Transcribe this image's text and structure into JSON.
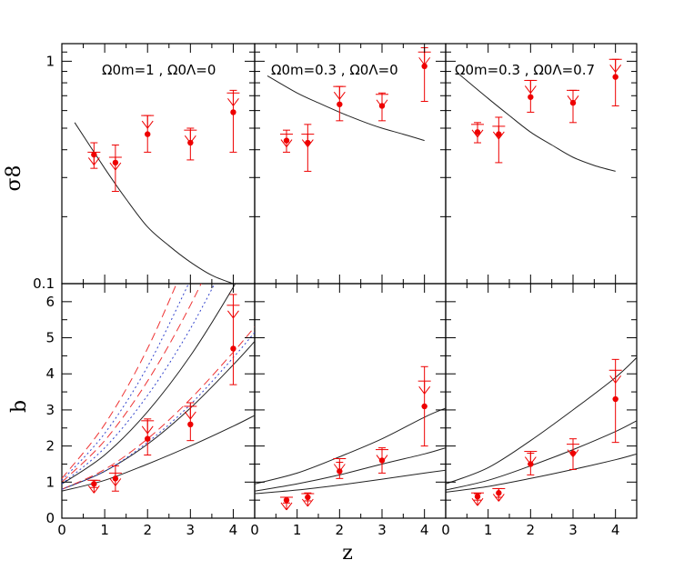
{
  "chart_data": {
    "type": "scatter",
    "xlabel": "z",
    "x_ticks": [
      "0",
      "1",
      "2",
      "3",
      "4"
    ],
    "colors": {
      "points": "#ee0000",
      "model_solid": "#222222",
      "model_dashed": "#ee3333",
      "model_dotted": "#3344cc"
    },
    "rows": [
      {
        "ylabel": "σ8",
        "yscale": "log",
        "ylim": [
          0.1,
          1.2
        ],
        "y_ticks": [
          {
            "value": 0.1,
            "label": "0.1"
          },
          {
            "value": 1,
            "label": "1"
          }
        ]
      },
      {
        "ylabel": "b",
        "yscale": "linear",
        "ylim": [
          0,
          6.5
        ],
        "y_ticks": [
          {
            "value": 0,
            "label": "0"
          },
          {
            "value": 1,
            "label": "1"
          },
          {
            "value": 2,
            "label": "2"
          },
          {
            "value": 3,
            "label": "3"
          },
          {
            "value": 4,
            "label": "4"
          },
          {
            "value": 5,
            "label": "5"
          },
          {
            "value": 6,
            "label": "6"
          }
        ]
      }
    ],
    "columns": [
      {
        "annotation": "Ω0m=1 , Ω0Λ=0",
        "sigma8": {
          "points": [
            {
              "x": 0.75,
              "y": 0.38,
              "lo": 0.33,
              "hi": 0.43
            },
            {
              "x": 1.25,
              "y": 0.35,
              "lo": 0.26,
              "hi": 0.42
            }
          ],
          "limits": [
            {
              "x": 0.75,
              "y": 0.39
            },
            {
              "x": 1.25,
              "y": 0.37
            },
            {
              "x": 2.0,
              "y": 0.57
            },
            {
              "x": 3.0,
              "y": 0.49
            },
            {
              "x": 4.0,
              "y": 0.72
            }
          ],
          "limit_points": [
            {
              "x": 2.0,
              "y": 0.47,
              "lo": 0.39,
              "hi": 0.57
            },
            {
              "x": 3.0,
              "y": 0.43,
              "lo": 0.36,
              "hi": 0.5
            },
            {
              "x": 4.0,
              "y": 0.59,
              "lo": 0.39,
              "hi": 0.74
            }
          ],
          "curves": [
            {
              "style": "solid",
              "x": [
                0.3,
                1,
                1.5,
                2,
                2.5,
                3,
                3.5,
                4
              ],
              "y": [
                0.53,
                0.33,
                0.24,
                0.18,
                0.148,
                0.125,
                0.109,
                0.1
              ]
            }
          ]
        },
        "bias": {
          "points": [
            {
              "x": 0.75,
              "y": 0.95,
              "lo": 0.85,
              "hi": 1.05
            },
            {
              "x": 1.25,
              "y": 1.1,
              "lo": 0.75,
              "hi": 1.45
            },
            {
              "x": 2.0,
              "y": 2.2,
              "lo": 1.75,
              "hi": 2.75
            },
            {
              "x": 3.0,
              "y": 2.6,
              "lo": 2.15,
              "hi": 3.2
            },
            {
              "x": 4.0,
              "y": 4.7,
              "lo": 3.7,
              "hi": 6.2
            }
          ],
          "limits": [
            {
              "x": 0.75,
              "y": 1.05
            },
            {
              "x": 1.25,
              "y": 1.25
            },
            {
              "x": 2.0,
              "y": 2.7
            },
            {
              "x": 3.0,
              "y": 3.1
            },
            {
              "x": 4.0,
              "y": 5.9
            }
          ],
          "curves": [
            {
              "style": "solid",
              "x": [
                0,
                1,
                2,
                3,
                4,
                4.5
              ],
              "y": [
                0.75,
                1.05,
                1.5,
                2.0,
                2.55,
                2.85
              ]
            },
            {
              "style": "solid",
              "x": [
                0,
                1,
                2,
                3,
                4,
                4.5
              ],
              "y": [
                0.8,
                1.3,
                2.05,
                3.05,
                4.25,
                4.9
              ]
            },
            {
              "style": "solid",
              "x": [
                0,
                1,
                2,
                3,
                4,
                4.5
              ],
              "y": [
                0.95,
                1.75,
                2.95,
                4.5,
                6.4,
                7.5
              ]
            },
            {
              "style": "dashed",
              "x": [
                0,
                1,
                2,
                3,
                4,
                4.5
              ],
              "y": [
                0.8,
                1.35,
                2.2,
                3.3,
                4.6,
                5.3
              ]
            },
            {
              "style": "dashed",
              "x": [
                0,
                1,
                2,
                3,
                4
              ],
              "y": [
                1.0,
                2.15,
                3.8,
                5.9,
                8.4
              ]
            },
            {
              "style": "dashed",
              "x": [
                0,
                1,
                2,
                3
              ],
              "y": [
                1.1,
                2.6,
                4.7,
                7.4
              ]
            },
            {
              "style": "dotted",
              "x": [
                0,
                1,
                2,
                3,
                4,
                4.5
              ],
              "y": [
                0.8,
                1.3,
                2.1,
                3.15,
                4.45,
                5.15
              ]
            },
            {
              "style": "dotted",
              "x": [
                0,
                1,
                2,
                3,
                4
              ],
              "y": [
                0.95,
                1.95,
                3.4,
                5.25,
                7.5
              ]
            },
            {
              "style": "dotted",
              "x": [
                0,
                1,
                2,
                3
              ],
              "y": [
                1.05,
                2.35,
                4.2,
                6.6
              ]
            }
          ]
        }
      },
      {
        "annotation": "Ω0m=0.3 , Ω0Λ=0",
        "sigma8": {
          "points": [
            {
              "x": 0.75,
              "y": 0.44,
              "lo": 0.39,
              "hi": 0.49
            },
            {
              "x": 1.25,
              "y": 0.43,
              "lo": 0.32,
              "hi": 0.52
            }
          ],
          "limits": [
            {
              "x": 0.75,
              "y": 0.47
            },
            {
              "x": 1.25,
              "y": 0.47
            },
            {
              "x": 2.0,
              "y": 0.77
            },
            {
              "x": 3.0,
              "y": 0.71
            },
            {
              "x": 4.0,
              "y": 1.1
            }
          ],
          "limit_points": [
            {
              "x": 2.0,
              "y": 0.64,
              "lo": 0.54,
              "hi": 0.77
            },
            {
              "x": 3.0,
              "y": 0.63,
              "lo": 0.54,
              "hi": 0.72
            },
            {
              "x": 4.0,
              "y": 0.95,
              "lo": 0.66,
              "hi": 1.15
            }
          ],
          "curves": [
            {
              "style": "solid",
              "x": [
                0.3,
                1,
                1.5,
                2,
                2.5,
                3,
                3.5,
                4
              ],
              "y": [
                0.86,
                0.72,
                0.65,
                0.59,
                0.54,
                0.5,
                0.47,
                0.44
              ]
            }
          ]
        },
        "bias": {
          "points": [
            {
              "x": 0.75,
              "y": 0.5,
              "lo": 0.42,
              "hi": 0.58
            },
            {
              "x": 1.25,
              "y": 0.58,
              "lo": 0.48,
              "hi": 0.7
            },
            {
              "x": 2.0,
              "y": 1.3,
              "lo": 1.1,
              "hi": 1.55
            },
            {
              "x": 3.0,
              "y": 1.6,
              "lo": 1.25,
              "hi": 1.95
            },
            {
              "x": 4.0,
              "y": 3.1,
              "lo": 2.0,
              "hi": 4.2
            }
          ],
          "limits": [
            {
              "x": 0.75,
              "y": 0.58
            },
            {
              "x": 1.25,
              "y": 0.68
            },
            {
              "x": 2.0,
              "y": 1.65
            },
            {
              "x": 3.0,
              "y": 1.9
            },
            {
              "x": 4.0,
              "y": 3.8
            }
          ],
          "curves": [
            {
              "style": "solid",
              "x": [
                0,
                1,
                2,
                3,
                4,
                4.5
              ],
              "y": [
                0.68,
                0.78,
                0.92,
                1.08,
                1.25,
                1.33
              ]
            },
            {
              "style": "solid",
              "x": [
                0,
                1,
                2,
                3,
                4,
                4.5
              ],
              "y": [
                0.75,
                0.95,
                1.2,
                1.5,
                1.78,
                1.95
              ]
            },
            {
              "style": "solid",
              "x": [
                0,
                1,
                2,
                3,
                4,
                4.5
              ],
              "y": [
                0.95,
                1.25,
                1.7,
                2.2,
                2.8,
                3.05
              ]
            }
          ]
        }
      },
      {
        "annotation": "Ω0m=0.3 , Ω0Λ=0.7",
        "sigma8": {
          "points": [
            {
              "x": 0.75,
              "y": 0.48,
              "lo": 0.43,
              "hi": 0.53
            },
            {
              "x": 1.25,
              "y": 0.47,
              "lo": 0.35,
              "hi": 0.56
            }
          ],
          "limits": [
            {
              "x": 0.75,
              "y": 0.52
            },
            {
              "x": 1.25,
              "y": 0.51
            },
            {
              "x": 2.0,
              "y": 0.82
            },
            {
              "x": 3.0,
              "y": 0.74
            },
            {
              "x": 4.0,
              "y": 1.02
            }
          ],
          "limit_points": [
            {
              "x": 2.0,
              "y": 0.69,
              "lo": 0.59,
              "hi": 0.82
            },
            {
              "x": 3.0,
              "y": 0.65,
              "lo": 0.53,
              "hi": 0.74
            },
            {
              "x": 4.0,
              "y": 0.85,
              "lo": 0.63,
              "hi": 1.02
            }
          ],
          "curves": [
            {
              "style": "solid",
              "x": [
                0.3,
                1,
                1.5,
                2,
                2.5,
                3,
                3.5,
                4
              ],
              "y": [
                0.88,
                0.68,
                0.57,
                0.48,
                0.42,
                0.37,
                0.34,
                0.32
              ]
            }
          ]
        },
        "bias": {
          "points": [
            {
              "x": 0.75,
              "y": 0.6,
              "lo": 0.5,
              "hi": 0.68
            },
            {
              "x": 1.25,
              "y": 0.7,
              "lo": 0.58,
              "hi": 0.82
            },
            {
              "x": 2.0,
              "y": 1.5,
              "lo": 1.2,
              "hi": 1.8
            },
            {
              "x": 3.0,
              "y": 1.8,
              "lo": 1.35,
              "hi": 2.2
            },
            {
              "x": 4.0,
              "y": 3.3,
              "lo": 2.1,
              "hi": 4.4
            }
          ],
          "limits": [
            {
              "x": 0.75,
              "y": 0.7
            },
            {
              "x": 1.25,
              "y": 0.82
            },
            {
              "x": 2.0,
              "y": 1.85
            },
            {
              "x": 3.0,
              "y": 2.05
            },
            {
              "x": 4.0,
              "y": 4.1
            }
          ],
          "curves": [
            {
              "style": "solid",
              "x": [
                0,
                1,
                2,
                3,
                4,
                4.5
              ],
              "y": [
                0.72,
                0.88,
                1.1,
                1.35,
                1.62,
                1.78
              ]
            },
            {
              "style": "solid",
              "x": [
                0,
                1,
                2,
                3,
                4,
                4.5
              ],
              "y": [
                0.78,
                1.05,
                1.45,
                1.9,
                2.4,
                2.7
              ]
            },
            {
              "style": "solid",
              "x": [
                0,
                1,
                2,
                3,
                4,
                4.5
              ],
              "y": [
                0.95,
                1.4,
                2.15,
                3.0,
                3.9,
                4.45
              ]
            }
          ]
        }
      }
    ]
  }
}
